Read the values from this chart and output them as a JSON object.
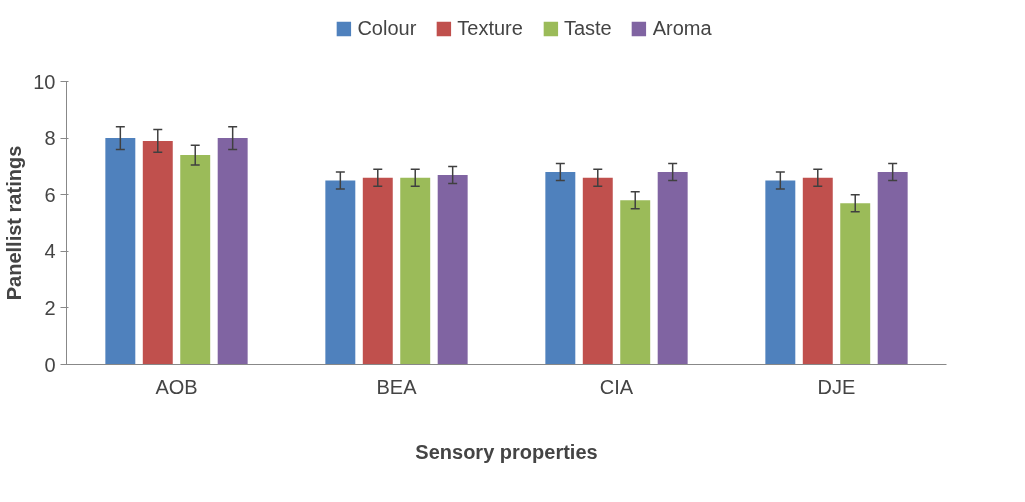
{
  "chart_data": {
    "type": "bar",
    "categories": [
      "AOB",
      "BEA",
      "CIA",
      "DJE"
    ],
    "series": [
      {
        "name": "Colour",
        "color": "#4f81bd",
        "values": [
          8.0,
          6.5,
          6.8,
          6.5
        ],
        "errors": [
          0.4,
          0.3,
          0.3,
          0.3
        ]
      },
      {
        "name": "Texture",
        "color": "#c0504d",
        "values": [
          7.9,
          6.6,
          6.6,
          6.6
        ],
        "errors": [
          0.4,
          0.3,
          0.3,
          0.3
        ]
      },
      {
        "name": "Taste",
        "color": "#9bbb59",
        "values": [
          7.4,
          6.6,
          5.8,
          5.7
        ],
        "errors": [
          0.35,
          0.3,
          0.3,
          0.3
        ]
      },
      {
        "name": "Aroma",
        "color": "#8064a2",
        "values": [
          8.0,
          6.7,
          6.8,
          6.8
        ],
        "errors": [
          0.4,
          0.3,
          0.3,
          0.3
        ]
      }
    ],
    "xlabel": "Sensory properties",
    "ylabel": "Panellist ratings",
    "ylim": [
      0,
      10
    ],
    "yticks": [
      0,
      2,
      4,
      6,
      8,
      10
    ],
    "grid": false,
    "legend": "top"
  }
}
